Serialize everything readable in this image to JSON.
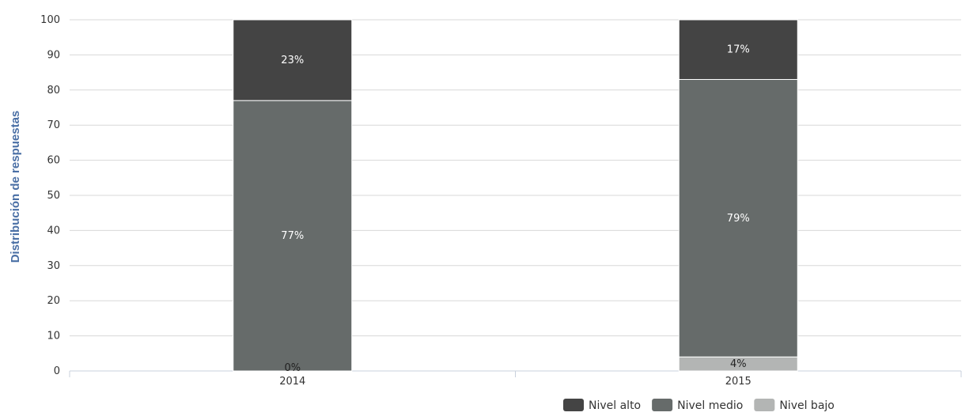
{
  "chart_data": {
    "type": "bar",
    "stacked": true,
    "categories": [
      "2014",
      "2015"
    ],
    "series": [
      {
        "name": "Nivel bajo",
        "values": [
          0,
          4
        ],
        "labels": [
          "0%",
          "4%"
        ],
        "color": "#b3b5b4",
        "label_color": "#222222"
      },
      {
        "name": "Nivel medio",
        "values": [
          77,
          79
        ],
        "labels": [
          "77%",
          "79%"
        ],
        "color": "#666b6a",
        "label_color": "#ffffff"
      },
      {
        "name": "Nivel alto",
        "values": [
          23,
          17
        ],
        "labels": [
          "23%",
          "17%"
        ],
        "color": "#444444",
        "label_color": "#ffffff"
      }
    ],
    "legend_order": [
      "Nivel alto",
      "Nivel medio",
      "Nivel bajo"
    ],
    "title": "",
    "xlabel": "",
    "ylabel": "Distribución de respuestas",
    "ylim": [
      0,
      100
    ],
    "yticks": [
      0,
      10,
      20,
      30,
      40,
      50,
      60,
      70,
      80,
      90,
      100
    ],
    "grid": true,
    "legend_position": "bottom-right",
    "axis_title_color": "#4a6fa5",
    "grid_color": "#d8d8d8"
  }
}
